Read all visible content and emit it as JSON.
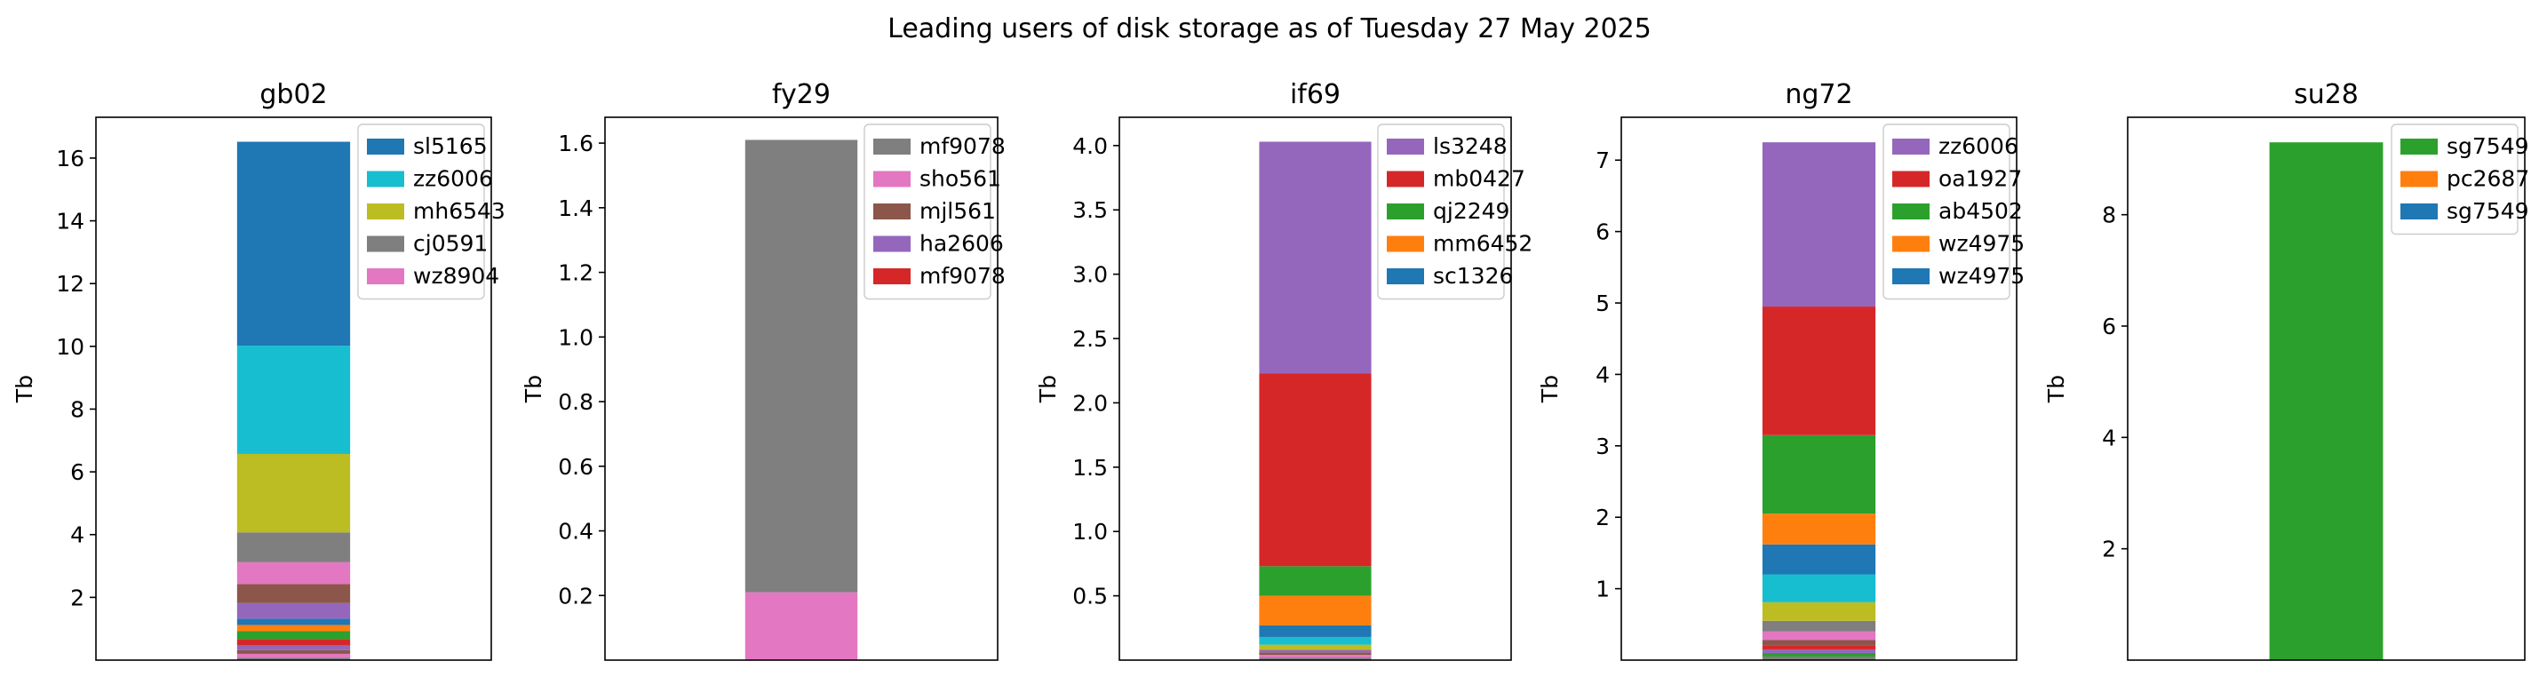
{
  "figure_title": "Leading users of disk storage as of  Tuesday 27 May 2025",
  "colors": {
    "blue": "#1f77b4",
    "orange": "#ff7f0e",
    "green": "#2ca02c",
    "red": "#d62728",
    "purple": "#9467bd",
    "brown": "#8c564b",
    "pink": "#e377c2",
    "gray": "#7f7f7f",
    "olive": "#bcbd22",
    "cyan": "#17becf"
  },
  "chart_data": [
    {
      "type": "bar",
      "stacked": true,
      "title": "gb02",
      "ylabel": "Tb",
      "ylim": [
        0,
        17.3
      ],
      "yticks": [
        2,
        4,
        6,
        8,
        10,
        12,
        14,
        16
      ],
      "tick_labels": [
        "2",
        "4",
        "6",
        "8",
        "10",
        "12",
        "14",
        "16"
      ],
      "legend_position": "top-right",
      "legend": [
        {
          "name": "sl5165",
          "color": "#1f77b4"
        },
        {
          "name": "zz6006",
          "color": "#17becf"
        },
        {
          "name": "mh6543",
          "color": "#bcbd22"
        },
        {
          "name": "cj0591",
          "color": "#7f7f7f"
        },
        {
          "name": "wz8904",
          "color": "#e377c2"
        }
      ],
      "segments": [
        {
          "value": 0.08,
          "color": "#7f7f7f"
        },
        {
          "value": 0.12,
          "color": "#e377c2"
        },
        {
          "value": 0.12,
          "color": "#8c564b"
        },
        {
          "value": 0.15,
          "color": "#9467bd"
        },
        {
          "value": 0.2,
          "color": "#d62728"
        },
        {
          "value": 0.25,
          "color": "#2ca02c"
        },
        {
          "value": 0.2,
          "color": "#ff7f0e"
        },
        {
          "value": 0.2,
          "color": "#1f77b4"
        },
        {
          "value": 0.5,
          "color": "#9467bd"
        },
        {
          "value": 0.6,
          "color": "#8c564b"
        },
        {
          "value": 0.7,
          "color": "#e377c2"
        },
        {
          "value": 0.95,
          "color": "#7f7f7f"
        },
        {
          "value": 2.5,
          "color": "#bcbd22"
        },
        {
          "value": 3.45,
          "color": "#17becf"
        },
        {
          "value": 6.5,
          "color": "#1f77b4"
        }
      ]
    },
    {
      "type": "bar",
      "stacked": true,
      "title": "fy29",
      "ylabel": "Tb",
      "ylim": [
        0,
        1.68
      ],
      "yticks": [
        0.2,
        0.4,
        0.6,
        0.8,
        1.0,
        1.2,
        1.4,
        1.6
      ],
      "tick_labels": [
        "0.2",
        "0.4",
        "0.6",
        "0.8",
        "1.0",
        "1.2",
        "1.4",
        "1.6"
      ],
      "legend_position": "top-right",
      "legend": [
        {
          "name": "mf9078",
          "color": "#7f7f7f"
        },
        {
          "name": "sho561",
          "color": "#e377c2"
        },
        {
          "name": "mjl561",
          "color": "#8c564b"
        },
        {
          "name": "ha2606",
          "color": "#9467bd"
        },
        {
          "name": "mf9078",
          "color": "#d62728"
        }
      ],
      "segments": [
        {
          "value": 0.21,
          "color": "#e377c2"
        },
        {
          "value": 1.4,
          "color": "#7f7f7f"
        }
      ]
    },
    {
      "type": "bar",
      "stacked": true,
      "title": "if69",
      "ylabel": "Tb",
      "ylim": [
        0,
        4.22
      ],
      "yticks": [
        0.5,
        1.0,
        1.5,
        2.0,
        2.5,
        3.0,
        3.5,
        4.0
      ],
      "tick_labels": [
        "0.5",
        "1.0",
        "1.5",
        "2.0",
        "2.5",
        "3.0",
        "3.5",
        "4.0"
      ],
      "legend_position": "top-right",
      "legend": [
        {
          "name": "ls3248",
          "color": "#9467bd"
        },
        {
          "name": "mb0427",
          "color": "#d62728"
        },
        {
          "name": "qj2249",
          "color": "#2ca02c"
        },
        {
          "name": "mm6452",
          "color": "#ff7f0e"
        },
        {
          "name": "sc1326",
          "color": "#1f77b4"
        }
      ],
      "segments": [
        {
          "value": 0.02,
          "color": "#7f7f7f"
        },
        {
          "value": 0.02,
          "color": "#e377c2"
        },
        {
          "value": 0.02,
          "color": "#8c564b"
        },
        {
          "value": 0.02,
          "color": "#9467bd"
        },
        {
          "value": 0.04,
          "color": "#bcbd22"
        },
        {
          "value": 0.06,
          "color": "#17becf"
        },
        {
          "value": 0.09,
          "color": "#1f77b4"
        },
        {
          "value": 0.23,
          "color": "#ff7f0e"
        },
        {
          "value": 0.23,
          "color": "#2ca02c"
        },
        {
          "value": 1.5,
          "color": "#d62728"
        },
        {
          "value": 1.8,
          "color": "#9467bd"
        }
      ]
    },
    {
      "type": "bar",
      "stacked": true,
      "title": "ng72",
      "ylabel": "Tb",
      "ylim": [
        0,
        7.6
      ],
      "yticks": [
        1,
        2,
        3,
        4,
        5,
        6,
        7
      ],
      "tick_labels": [
        "1",
        "2",
        "3",
        "4",
        "5",
        "6",
        "7"
      ],
      "legend_position": "top-right",
      "legend": [
        {
          "name": "zz6006",
          "color": "#9467bd"
        },
        {
          "name": "oa1927",
          "color": "#d62728"
        },
        {
          "name": "ab4502",
          "color": "#2ca02c"
        },
        {
          "name": "wz4975",
          "color": "#ff7f0e"
        },
        {
          "name": "wz4975",
          "color": "#1f77b4"
        }
      ],
      "segments": [
        {
          "value": 0.05,
          "color": "#7f7f7f"
        },
        {
          "value": 0.05,
          "color": "#2ca02c"
        },
        {
          "value": 0.05,
          "color": "#9467bd"
        },
        {
          "value": 0.05,
          "color": "#d62728"
        },
        {
          "value": 0.08,
          "color": "#8c564b"
        },
        {
          "value": 0.12,
          "color": "#e377c2"
        },
        {
          "value": 0.15,
          "color": "#7f7f7f"
        },
        {
          "value": 0.26,
          "color": "#bcbd22"
        },
        {
          "value": 0.39,
          "color": "#17becf"
        },
        {
          "value": 0.42,
          "color": "#1f77b4"
        },
        {
          "value": 0.43,
          "color": "#ff7f0e"
        },
        {
          "value": 1.1,
          "color": "#2ca02c"
        },
        {
          "value": 1.8,
          "color": "#d62728"
        },
        {
          "value": 2.3,
          "color": "#9467bd"
        }
      ]
    },
    {
      "type": "bar",
      "stacked": true,
      "title": "su28",
      "ylabel": "Tb",
      "ylim": [
        0,
        9.75
      ],
      "yticks": [
        2,
        4,
        6,
        8
      ],
      "tick_labels": [
        "2",
        "4",
        "6",
        "8"
      ],
      "legend_position": "top-right",
      "legend": [
        {
          "name": "sg7549",
          "color": "#2ca02c"
        },
        {
          "name": "pc2687",
          "color": "#ff7f0e"
        },
        {
          "name": "sg7549",
          "color": "#1f77b4"
        }
      ],
      "segments": [
        {
          "value": 9.3,
          "color": "#2ca02c"
        }
      ]
    }
  ]
}
